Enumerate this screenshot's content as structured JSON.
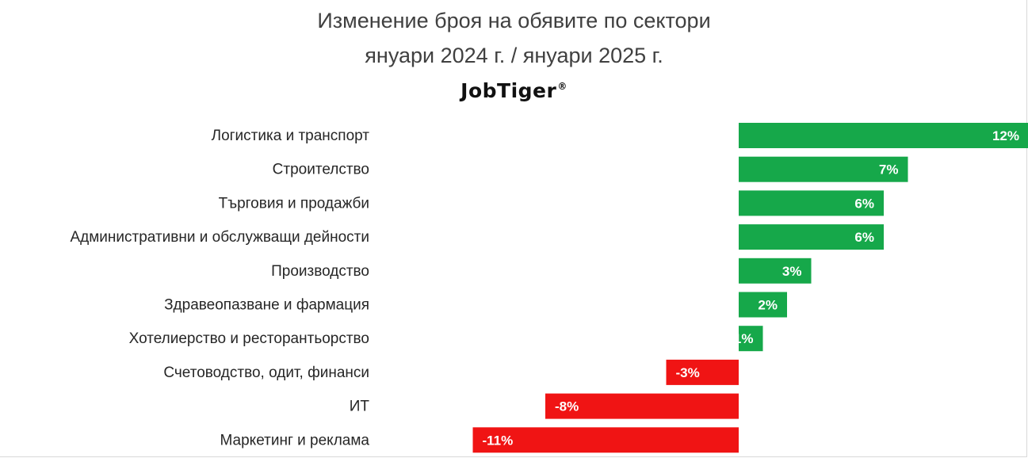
{
  "header": {
    "title_line1": "Изменение броя на обявите по сектори",
    "title_line2": "януари 2024 г. / януари 2025 г.",
    "brand": "JobTiger",
    "brand_mark": "®"
  },
  "colors": {
    "positive": "#16a84a",
    "negative": "#f01414",
    "label_text": "#262626",
    "value_text": "#ffffff"
  },
  "chart_data": {
    "type": "bar",
    "orientation": "horizontal",
    "categories": [
      "Логистика и транспорт",
      "Строителство",
      "Търговия и продажби",
      "Административни и обслужващи дейности",
      "Производство",
      "Здравеопазване и фармация",
      "Хотелиерство и ресторантьорство",
      "Счетоводство, одит, финанси",
      "ИТ",
      "Маркетинг и реклама"
    ],
    "values": [
      12,
      7,
      6,
      6,
      3,
      2,
      1,
      -3,
      -8,
      -11
    ],
    "value_labels": [
      "12%",
      "7%",
      "6%",
      "6%",
      "3%",
      "2%",
      "1%",
      "-3%",
      "-8%",
      "-11%"
    ],
    "unit": "%",
    "xlim": [
      -11,
      12
    ],
    "grid": false,
    "legend": "none"
  }
}
